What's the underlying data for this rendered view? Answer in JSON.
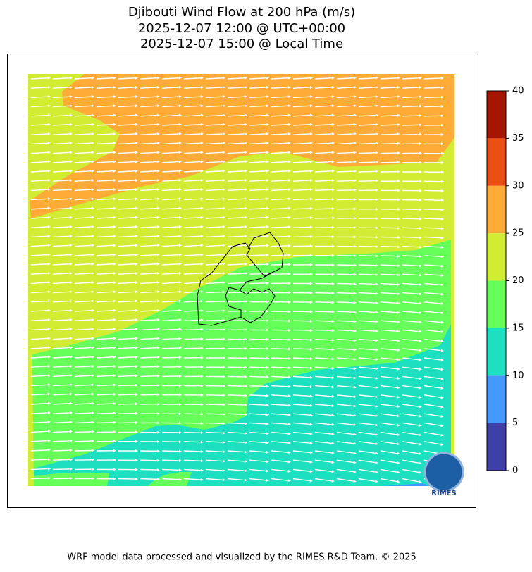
{
  "title": [
    "Djibouti Wind Flow at 200 hPa (m/s)",
    "2025-12-07 12:00 @ UTC+00:00",
    "2025-12-07 15:00 @ Local Time"
  ],
  "colorbar": {
    "levels": [
      0,
      5,
      10,
      15,
      20,
      25,
      30,
      35,
      40
    ],
    "colors": [
      "#3f3fa8",
      "#4499ff",
      "#1de0c0",
      "#66ff5a",
      "#d2eb33",
      "#ffab38",
      "#ec4f14",
      "#a51502"
    ]
  },
  "logo": "RIMES",
  "footer": "WRF model data processed and visualized by the RIMES R&D Team. © 2025"
}
